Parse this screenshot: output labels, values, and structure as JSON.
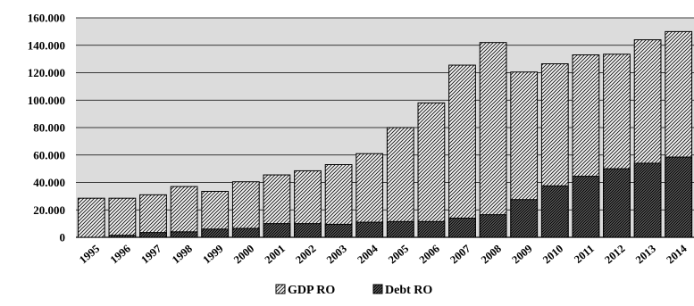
{
  "chart_data": {
    "type": "bar",
    "stacked": false,
    "overlapped": true,
    "categories": [
      "1995",
      "1996",
      "1997",
      "1998",
      "1999",
      "2000",
      "2001",
      "2002",
      "2003",
      "2004",
      "2005",
      "2006",
      "2007",
      "2008",
      "2009",
      "2010",
      "2011",
      "2012",
      "2013",
      "2014"
    ],
    "series": [
      {
        "name": "GDP  RO",
        "values": [
          28500,
          28500,
          31000,
          37000,
          33500,
          40500,
          45500,
          48500,
          53000,
          61000,
          80000,
          98000,
          125500,
          142000,
          120500,
          126500,
          133000,
          133500,
          144000,
          150000
        ],
        "pattern": "light-hatch"
      },
      {
        "name": "Debt  RO",
        "values": [
          0,
          1500,
          3500,
          4000,
          6000,
          6500,
          10000,
          10000,
          9500,
          11000,
          11500,
          11500,
          14000,
          16500,
          27500,
          37500,
          44500,
          50000,
          54000,
          58500
        ],
        "pattern": "dark-hatch"
      }
    ],
    "y_ticks": [
      "0",
      "20.000",
      "40.000",
      "60.000",
      "80.000",
      "100.000",
      "120.000",
      "140.000",
      "160.000"
    ],
    "ylim": [
      0,
      160000
    ],
    "grid": true,
    "legend_position": "bottom-center",
    "colors": {
      "plot_background": "#dcdcdc",
      "gridline": "#000000",
      "bar_border": "#000000"
    }
  }
}
